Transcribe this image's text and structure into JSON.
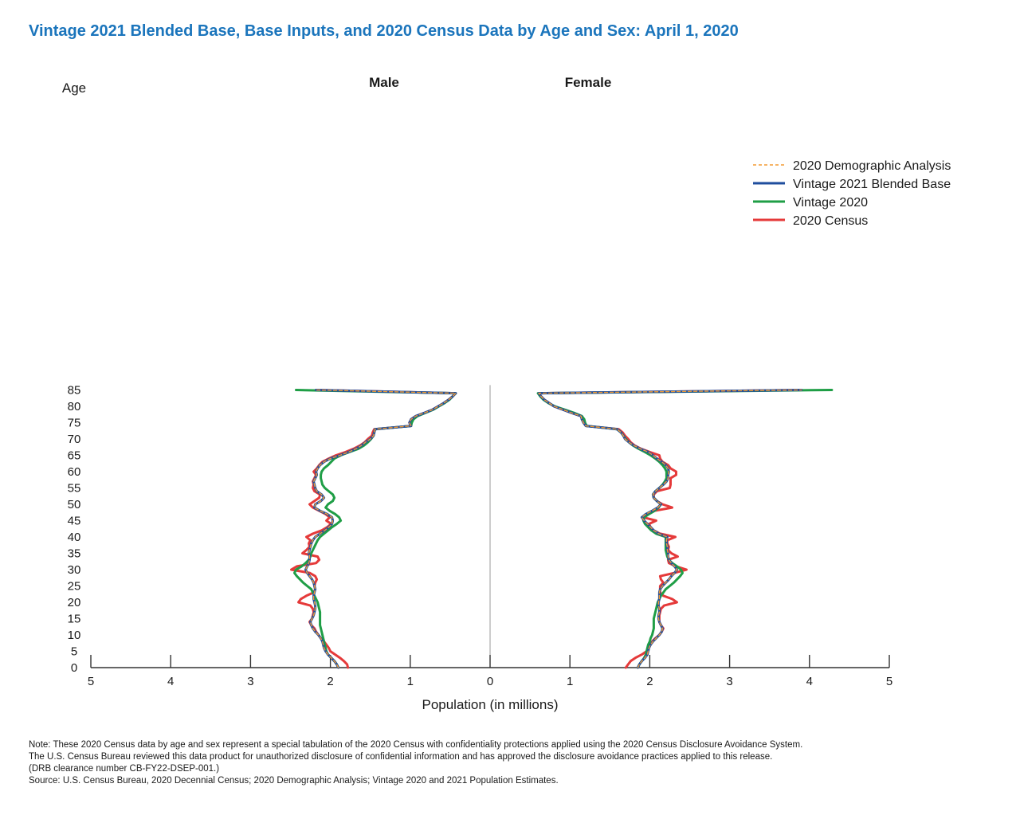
{
  "title": "Vintage 2021 Blended Base, Base Inputs, and 2020 Census Data by Age and Sex: April 1, 2020",
  "notes": [
    "Note: These 2020 Census data by age and sex represent a special tabulation of the 2020 Census with confidentiality protections applied using the 2020 Census Disclosure Avoidance System.",
    "The U.S. Census Bureau reviewed this data product for unauthorized disclosure of confidential information and has approved the disclosure avoidance practices applied to this release.",
    "(DRB clearance number CB-FY22-DSEP-001.)",
    "Source: U.S. Census Bureau, 2020 Decennial Census; 2020 Demographic Analysis; Vintage 2020 and 2021 Population Estimates."
  ],
  "chart_data": {
    "type": "line",
    "title": "Vintage 2021 Blended Base, Base Inputs, and 2020 Census Data by Age and Sex: April 1, 2020",
    "ylabel": "Age",
    "xlabel": "Population (in millions)",
    "panels": [
      "Male",
      "Female"
    ],
    "x_ticks": [
      "5",
      "4",
      "3",
      "2",
      "1",
      "0",
      "1",
      "2",
      "3",
      "4",
      "5"
    ],
    "y_ticks": [
      "0",
      "5",
      "10",
      "15",
      "20",
      "25",
      "30",
      "35",
      "40",
      "45",
      "50",
      "55",
      "60",
      "65",
      "70",
      "75",
      "80",
      "85"
    ],
    "xlim": [
      -5,
      5
    ],
    "ylim": [
      0,
      85
    ],
    "legend_position": "right",
    "ages": [
      0,
      1,
      2,
      3,
      4,
      5,
      6,
      7,
      8,
      9,
      10,
      11,
      12,
      13,
      14,
      15,
      16,
      17,
      18,
      19,
      20,
      21,
      22,
      23,
      24,
      25,
      26,
      27,
      28,
      29,
      30,
      31,
      32,
      33,
      34,
      35,
      36,
      37,
      38,
      39,
      40,
      41,
      42,
      43,
      44,
      45,
      46,
      47,
      48,
      49,
      50,
      51,
      52,
      53,
      54,
      55,
      56,
      57,
      58,
      59,
      60,
      61,
      62,
      63,
      64,
      65,
      66,
      67,
      68,
      69,
      70,
      71,
      72,
      73,
      74,
      75,
      76,
      77,
      78,
      79,
      80,
      81,
      82,
      83,
      84,
      85
    ],
    "series": [
      {
        "name": "2020 Demographic Analysis",
        "color": "#f39c34",
        "dash": true,
        "male": [
          1.9,
          1.92,
          1.95,
          1.99,
          2.03,
          2.06,
          2.08,
          2.09,
          2.1,
          2.12,
          2.15,
          2.19,
          2.22,
          2.24,
          2.25,
          2.23,
          2.21,
          2.2,
          2.19,
          2.19,
          2.2,
          2.21,
          2.21,
          2.2,
          2.19,
          2.2,
          2.21,
          2.23,
          2.26,
          2.29,
          2.31,
          2.29,
          2.27,
          2.26,
          2.26,
          2.27,
          2.26,
          2.25,
          2.24,
          2.22,
          2.19,
          2.13,
          2.07,
          2.02,
          1.98,
          1.97,
          1.98,
          2.04,
          2.13,
          2.2,
          2.19,
          2.12,
          2.08,
          2.11,
          2.17,
          2.19,
          2.2,
          2.21,
          2.19,
          2.17,
          2.18,
          2.16,
          2.13,
          2.08,
          2.0,
          1.88,
          1.77,
          1.68,
          1.61,
          1.56,
          1.5,
          1.46,
          1.45,
          1.44,
          0.99,
          1.01,
          0.99,
          0.93,
          0.82,
          0.72,
          0.65,
          0.58,
          0.52,
          0.47,
          0.43,
          2.18
        ],
        "female": [
          1.85,
          1.87,
          1.9,
          1.94,
          1.97,
          1.98,
          1.99,
          2.01,
          2.04,
          2.08,
          2.12,
          2.15,
          2.16,
          2.14,
          2.12,
          2.11,
          2.11,
          2.12,
          2.12,
          2.11,
          2.11,
          2.12,
          2.12,
          2.12,
          2.13,
          2.16,
          2.2,
          2.24,
          2.27,
          2.31,
          2.34,
          2.31,
          2.27,
          2.24,
          2.23,
          2.23,
          2.22,
          2.22,
          2.21,
          2.21,
          2.22,
          2.11,
          2.05,
          2.01,
          1.97,
          1.93,
          1.9,
          1.95,
          2.03,
          2.1,
          2.14,
          2.09,
          2.05,
          2.04,
          2.07,
          2.12,
          2.17,
          2.21,
          2.23,
          2.23,
          2.24,
          2.23,
          2.2,
          2.15,
          2.09,
          2.04,
          1.98,
          1.88,
          1.8,
          1.74,
          1.69,
          1.67,
          1.64,
          1.59,
          1.2,
          1.17,
          1.15,
          1.14,
          1.02,
          0.91,
          0.8,
          0.74,
          0.68,
          0.64,
          0.61,
          3.9
        ]
      },
      {
        "name": "Vintage 2021 Blended Base",
        "color": "#1f4e9e",
        "dash": false,
        "male": [
          1.9,
          1.92,
          1.95,
          1.99,
          2.03,
          2.06,
          2.08,
          2.09,
          2.1,
          2.12,
          2.15,
          2.19,
          2.22,
          2.24,
          2.25,
          2.23,
          2.21,
          2.2,
          2.19,
          2.19,
          2.2,
          2.21,
          2.21,
          2.2,
          2.19,
          2.2,
          2.21,
          2.23,
          2.26,
          2.29,
          2.31,
          2.29,
          2.27,
          2.26,
          2.26,
          2.27,
          2.26,
          2.25,
          2.24,
          2.22,
          2.19,
          2.13,
          2.07,
          2.02,
          1.98,
          1.97,
          1.98,
          2.04,
          2.13,
          2.2,
          2.19,
          2.12,
          2.08,
          2.11,
          2.17,
          2.19,
          2.2,
          2.21,
          2.19,
          2.17,
          2.18,
          2.16,
          2.13,
          2.08,
          2.0,
          1.88,
          1.77,
          1.68,
          1.61,
          1.56,
          1.5,
          1.46,
          1.45,
          1.44,
          0.99,
          1.01,
          0.99,
          0.93,
          0.82,
          0.72,
          0.65,
          0.58,
          0.52,
          0.47,
          0.43,
          2.18
        ],
        "female": [
          1.85,
          1.87,
          1.9,
          1.94,
          1.97,
          1.98,
          1.99,
          2.01,
          2.04,
          2.08,
          2.12,
          2.15,
          2.16,
          2.14,
          2.12,
          2.11,
          2.11,
          2.12,
          2.12,
          2.11,
          2.11,
          2.12,
          2.12,
          2.12,
          2.13,
          2.16,
          2.2,
          2.24,
          2.27,
          2.31,
          2.34,
          2.31,
          2.27,
          2.24,
          2.23,
          2.23,
          2.22,
          2.22,
          2.21,
          2.21,
          2.22,
          2.11,
          2.05,
          2.01,
          1.97,
          1.93,
          1.9,
          1.95,
          2.03,
          2.1,
          2.14,
          2.09,
          2.05,
          2.04,
          2.07,
          2.12,
          2.17,
          2.21,
          2.23,
          2.23,
          2.24,
          2.23,
          2.2,
          2.15,
          2.09,
          2.04,
          1.98,
          1.88,
          1.8,
          1.74,
          1.69,
          1.67,
          1.64,
          1.59,
          1.2,
          1.17,
          1.15,
          1.14,
          1.02,
          0.91,
          0.8,
          0.74,
          0.68,
          0.64,
          0.61,
          3.9
        ]
      },
      {
        "name": "Vintage 2020",
        "color": "#1f9e46",
        "dash": false,
        "male": [
          1.9,
          1.92,
          1.95,
          1.99,
          2.03,
          2.05,
          2.06,
          2.07,
          2.08,
          2.09,
          2.1,
          2.11,
          2.12,
          2.13,
          2.13,
          2.13,
          2.13,
          2.13,
          2.14,
          2.15,
          2.16,
          2.18,
          2.2,
          2.22,
          2.24,
          2.29,
          2.34,
          2.38,
          2.42,
          2.45,
          2.43,
          2.36,
          2.31,
          2.27,
          2.25,
          2.24,
          2.22,
          2.2,
          2.18,
          2.16,
          2.13,
          2.08,
          2.03,
          1.98,
          1.92,
          1.87,
          1.89,
          1.94,
          2.01,
          2.06,
          2.03,
          1.97,
          1.95,
          1.97,
          2.02,
          2.07,
          2.1,
          2.11,
          2.12,
          2.12,
          2.11,
          2.08,
          2.03,
          1.99,
          1.95,
          1.87,
          1.76,
          1.65,
          1.58,
          1.53,
          1.49,
          1.46,
          1.45,
          1.44,
          0.99,
          0.98,
          0.96,
          0.91,
          0.81,
          0.71,
          0.64,
          0.57,
          0.51,
          0.47,
          0.43,
          2.43
        ],
        "female": [
          1.85,
          1.87,
          1.9,
          1.93,
          1.95,
          1.96,
          1.97,
          1.98,
          2.0,
          2.01,
          2.03,
          2.04,
          2.05,
          2.05,
          2.05,
          2.05,
          2.06,
          2.07,
          2.08,
          2.09,
          2.1,
          2.12,
          2.14,
          2.17,
          2.2,
          2.25,
          2.3,
          2.34,
          2.38,
          2.41,
          2.39,
          2.34,
          2.28,
          2.24,
          2.22,
          2.21,
          2.2,
          2.2,
          2.2,
          2.2,
          2.2,
          2.08,
          2.02,
          1.98,
          1.94,
          1.92,
          1.93,
          1.99,
          2.06,
          2.11,
          2.14,
          2.09,
          2.05,
          2.04,
          2.07,
          2.12,
          2.16,
          2.19,
          2.21,
          2.21,
          2.21,
          2.19,
          2.16,
          2.12,
          2.07,
          2.01,
          1.94,
          1.86,
          1.79,
          1.74,
          1.7,
          1.67,
          1.64,
          1.59,
          1.21,
          1.19,
          1.18,
          1.15,
          1.05,
          0.93,
          0.81,
          0.73,
          0.67,
          0.63,
          0.6,
          4.28
        ]
      },
      {
        "name": "2020 Census",
        "color": "#e53a3a",
        "dash": false,
        "male": [
          1.78,
          1.79,
          1.83,
          1.88,
          1.94,
          2.0,
          2.02,
          2.05,
          2.08,
          2.12,
          2.15,
          2.18,
          2.2,
          2.24,
          2.26,
          2.23,
          2.22,
          2.21,
          2.22,
          2.25,
          2.4,
          2.37,
          2.3,
          2.21,
          2.19,
          2.2,
          2.19,
          2.17,
          2.19,
          2.26,
          2.49,
          2.42,
          2.18,
          2.14,
          2.16,
          2.35,
          2.3,
          2.26,
          2.27,
          2.25,
          2.3,
          2.22,
          2.11,
          2.04,
          1.99,
          2.05,
          2.01,
          2.06,
          2.14,
          2.22,
          2.26,
          2.2,
          2.14,
          2.13,
          2.2,
          2.22,
          2.21,
          2.22,
          2.2,
          2.18,
          2.21,
          2.17,
          2.14,
          2.1,
          2.02,
          1.93,
          1.81,
          1.71,
          1.63,
          1.57,
          1.53,
          1.48,
          1.47,
          1.45,
          0.99,
          1.01,
          0.99,
          0.93,
          0.82,
          0.72,
          0.65,
          0.58,
          0.52,
          0.47,
          0.43,
          2.18
        ],
        "female": [
          1.7,
          1.73,
          1.76,
          1.82,
          1.9,
          1.96,
          1.98,
          2.0,
          2.03,
          2.07,
          2.12,
          2.15,
          2.17,
          2.14,
          2.12,
          2.12,
          2.12,
          2.13,
          2.14,
          2.18,
          2.34,
          2.28,
          2.17,
          2.13,
          2.13,
          2.13,
          2.17,
          2.14,
          2.13,
          2.31,
          2.46,
          2.33,
          2.24,
          2.23,
          2.35,
          2.27,
          2.23,
          2.24,
          2.22,
          2.22,
          2.32,
          2.13,
          2.05,
          2.01,
          1.99,
          2.08,
          1.92,
          1.98,
          2.06,
          2.28,
          2.16,
          2.09,
          2.05,
          2.05,
          2.09,
          2.25,
          2.26,
          2.26,
          2.26,
          2.33,
          2.33,
          2.26,
          2.23,
          2.16,
          2.13,
          2.12,
          2.0,
          1.89,
          1.81,
          1.76,
          1.73,
          1.69,
          1.66,
          1.61,
          1.2,
          1.17,
          1.15,
          1.14,
          1.02,
          0.91,
          0.8,
          0.74,
          0.68,
          0.64,
          0.61,
          3.9
        ]
      }
    ]
  }
}
